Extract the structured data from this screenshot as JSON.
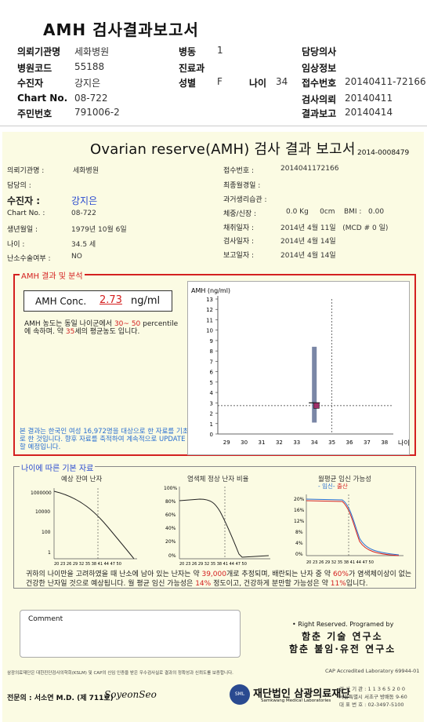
{
  "header": {
    "title": "AMH 검사결과보고서",
    "rows": [
      {
        "l1": "의뢰기관명",
        "v1": "세화병원",
        "l2": "병동",
        "v2": "1",
        "l3": "담당의사",
        "v3": ""
      },
      {
        "l1": "병원코드",
        "v1": "55188",
        "l2": "진료과",
        "v2": "",
        "l3": "임상정보",
        "v3": ""
      },
      {
        "l1": "수진자",
        "v1": "강지은",
        "l2": "성별",
        "v2": "F",
        "l2b": "나이",
        "v2b": "34",
        "l3": "접수번호",
        "v3": "20140411-72166"
      },
      {
        "l1": "Chart No.",
        "v1": "08-722",
        "l2": "",
        "v2": "",
        "l3": "검사의뢰",
        "v3": "20140411"
      },
      {
        "l1": "주민번호",
        "v1": "791006-2",
        "l2": "",
        "v2": "",
        "l3": "결과보고",
        "v3": "20140414"
      }
    ]
  },
  "report": {
    "title": "Ovarian reserve(AMH) 검사 결과 보고서",
    "doc_no": "2014-0008479",
    "left": [
      {
        "label": "의뢰기관명 :",
        "value": "세화병원"
      },
      {
        "label": "담당의 :",
        "value": ""
      },
      {
        "label": "수진자 :",
        "value": "강지은"
      },
      {
        "label": "Chart No. :",
        "value": "08-722"
      },
      {
        "label": "생년월일 :",
        "value": "1979년 10월 6일"
      },
      {
        "label": "나이 :",
        "value": "34.5 세"
      },
      {
        "label": "난소수술여부 :",
        "value": "NO"
      }
    ],
    "right": [
      {
        "label": "접수번호 :",
        "value": "201404117216​6"
      },
      {
        "label": "최종월경일 :",
        "value": ""
      },
      {
        "label": "과거생리습관 :",
        "value": ""
      },
      {
        "label": "체중/신장 :",
        "value": "0.0 Kg     0cm    BMI :   0.00"
      },
      {
        "label": "채취일자 :",
        "value": "2014년 4월 11일   (MCD # 0 일)"
      },
      {
        "label": "검사일자 :",
        "value": "2014년 4월 14일"
      },
      {
        "label": "보고일자 :",
        "value": "2014년 4월 14일"
      }
    ]
  },
  "analysis": {
    "section_title": "AMH 결과 및 분석",
    "conc_label": "AMH Conc.",
    "conc_value": "2.73",
    "conc_unit": "ng/ml",
    "text_a": "AMH 농도는 동일 나이군에서",
    "pct_low": "30",
    "pct_sep": "~",
    "pct_high": "50",
    "text_b": "percentile에 속하며. 약",
    "avg_age": "35",
    "text_c": "세의 평균농도 입니다.",
    "note": "본 결과는 한국인 여성 16,972명을 대상으로 한 자료를 기초로 한 것입니다. 향후 자료를 축적하여 계속적으로 UPDATE할 예정입니다."
  },
  "chart_data": {
    "type": "scatter",
    "ylabel": "AMH (ng/ml)",
    "xlabel": "나이",
    "x_ticks": [
      "29",
      "30",
      "31",
      "32",
      "33",
      "34",
      "35",
      "36",
      "37",
      "38"
    ],
    "y_ticks": [
      "0",
      "1",
      "2",
      "3",
      "4",
      "5",
      "6",
      "7",
      "8",
      "9",
      "10",
      "11",
      "12",
      "13"
    ],
    "ylim": [
      0,
      13
    ],
    "xlim": [
      28.5,
      38.5
    ],
    "range_bar": {
      "x": 34,
      "low": 1.1,
      "high": 8.4
    },
    "point": {
      "x": 34.5,
      "y": 2.73
    },
    "mean_tick": {
      "x": 34,
      "y": 3.0
    },
    "ref_lines": {
      "x": 35,
      "y": 2.73
    }
  },
  "basic": {
    "section_title": "나이에 따른 기본 자료",
    "panels": [
      {
        "title": "예상 잔여 난자",
        "y_ticks": [
          "1000000",
          "10000",
          "100",
          "1"
        ],
        "x_ticks": "20 23 26 29 32 35 38 41 44 47 50"
      },
      {
        "title": "염색체 정상 난자 비율",
        "y_ticks": [
          "100%",
          "80%",
          "60%",
          "40%",
          "20%",
          "0%"
        ],
        "x_ticks": "20 23 26 29 32 35 38 41 44 47 50"
      },
      {
        "title": "월평균 임신 가능성",
        "legend_a": "- 임신-",
        "legend_b": "출산",
        "y_ticks": [
          "20%",
          "16%",
          "12%",
          "8%",
          "4%",
          "0%"
        ],
        "x_ticks": "20 23 26 29 32 35 38 41 44 47 50"
      }
    ],
    "summary_a": "귀하의 나이만을 고려하였을 때 난소에 남아 있는 난자는 약",
    "eggs": "39,000",
    "summary_b": "개로 추정되며, 배란되는 난자 중 약",
    "normal_pct": "60%",
    "summary_c": "가 염색체이상이 없는 건강한 난자일 것으로 예상됩니다. 월 평균 임신 가능성은",
    "preg_pct": "14%",
    "summary_d": "정도이고, 건강하게 분만할 가능성은 약",
    "birth_pct": "11%",
    "summary_e": "입니다."
  },
  "footer": {
    "comment_label": "Comment",
    "rights": "• Right Reserved. Programed by",
    "org1": "함춘 기술 연구소",
    "org2": "함춘 불임·유전 연구소",
    "cert_left": "삼광의료재단은 대한진단검사의학회(KSLM) 및 CAP의 신임 인증을 받은 우수검사실로 결과의 정확성과 신뢰도를 보증합니다.",
    "cert_right": "CAP Accredited Laboratory  69944-01",
    "doctor": "전문의 : 서소연 M.D. (제 711호)",
    "signature": "SoyeonSeo",
    "foundation": "재단법인 삼광의료재단",
    "foundation_en": "Samkwang Medical Laboratories",
    "addr1": "검 사 기 관 : 1 1 3 6 5 2 0 0",
    "addr2": "서울특별시 서초구 방배동 9-60",
    "addr3": "대 표 번 호 : 02-3497-5100"
  }
}
